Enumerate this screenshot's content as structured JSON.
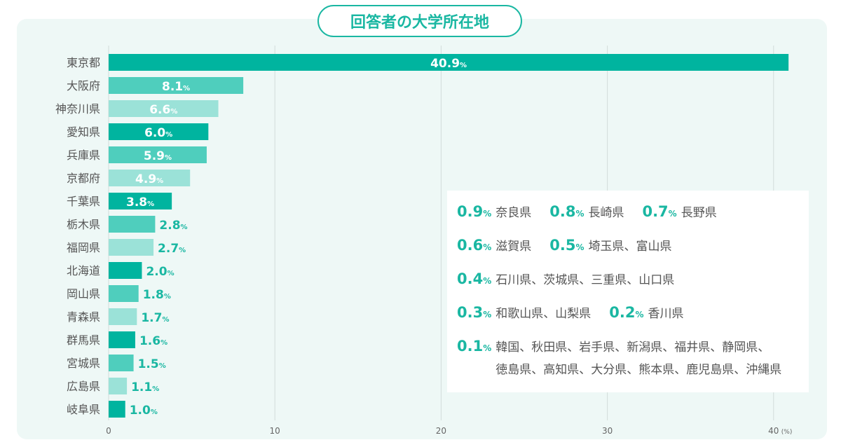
{
  "chart_data": {
    "type": "bar",
    "orientation": "horizontal",
    "title": "回答者の大学所在地",
    "categories": [
      "東京都",
      "大阪府",
      "神奈川県",
      "愛知県",
      "兵庫県",
      "京都府",
      "千葉県",
      "栃木県",
      "福岡県",
      "北海道",
      "岡山県",
      "青森県",
      "群馬県",
      "宮城県",
      "広島県",
      "岐阜県"
    ],
    "values": [
      40.9,
      8.1,
      6.6,
      6.0,
      5.9,
      4.9,
      3.8,
      2.8,
      2.7,
      2.0,
      1.8,
      1.7,
      1.6,
      1.5,
      1.1,
      1.0
    ],
    "value_labels": [
      "40.9",
      "8.1",
      "6.6",
      "6.0",
      "5.9",
      "4.9",
      "3.8",
      "2.8",
      "2.7",
      "2.0",
      "1.8",
      "1.7",
      "1.6",
      "1.5",
      "1.1",
      "1.0"
    ],
    "unit": "%",
    "xticks": [
      "0",
      "10",
      "20",
      "30",
      "40"
    ],
    "xtick_values": [
      0,
      10,
      20,
      30,
      40
    ],
    "xunit": "(%)",
    "xlim": [
      0,
      42
    ],
    "grid": true,
    "colors": [
      "#00b49f",
      "#4fcebd",
      "#9be2d8"
    ]
  },
  "notes": [
    [
      {
        "pct": "0.9",
        "unit": "%",
        "text": "奈良県"
      },
      {
        "pct": "0.8",
        "unit": "%",
        "text": "長崎県"
      },
      {
        "pct": "0.7",
        "unit": "%",
        "text": "長野県"
      }
    ],
    [
      {
        "pct": "0.6",
        "unit": "%",
        "text": "滋賀県"
      },
      {
        "pct": "0.5",
        "unit": "%",
        "text": "埼玉県、富山県"
      }
    ],
    [
      {
        "pct": "0.4",
        "unit": "%",
        "text": "石川県、茨城県、三重県、山口県"
      }
    ],
    [
      {
        "pct": "0.3",
        "unit": "%",
        "text": "和歌山県、山梨県"
      },
      {
        "pct": "0.2",
        "unit": "%",
        "text": "香川県"
      }
    ],
    [
      {
        "pct": "0.1",
        "unit": "%",
        "text": "韓国、秋田県、岩手県、新潟県、福井県、静岡県、",
        "text2": "徳島県、高知県、大分県、熊本県、鹿児島県、沖縄県"
      }
    ]
  ]
}
